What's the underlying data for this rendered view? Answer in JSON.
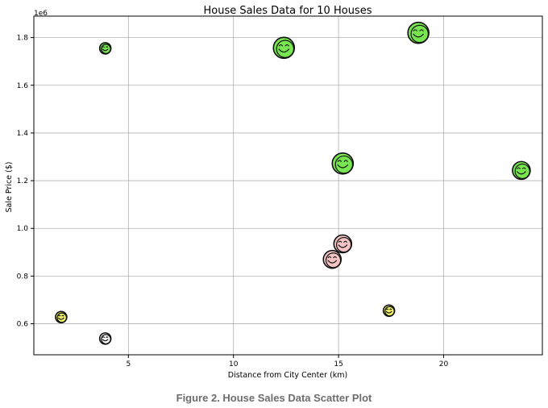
{
  "chart_data": {
    "type": "scatter",
    "title": "House Sales Data for 10 Houses",
    "xlabel": "Distance from City Center (km)",
    "ylabel": "Sale Price ($)",
    "y_multiplier": "1e6",
    "xlim": [
      0.5,
      24.7
    ],
    "ylim": [
      470000,
      1890000
    ],
    "x_ticks": [
      {
        "value": 5,
        "label": "5"
      },
      {
        "value": 10,
        "label": "10"
      },
      {
        "value": 15,
        "label": "15"
      },
      {
        "value": 20,
        "label": "20"
      }
    ],
    "y_ticks": [
      {
        "value": 600000,
        "label": "0.6"
      },
      {
        "value": 800000,
        "label": "0.8"
      },
      {
        "value": 1000000,
        "label": "1.0"
      },
      {
        "value": 1200000,
        "label": "1.2"
      },
      {
        "value": 1400000,
        "label": "1.4"
      },
      {
        "value": 1600000,
        "label": "1.6"
      },
      {
        "value": 1800000,
        "label": "1.8"
      }
    ],
    "grid": true,
    "marker": "smiley-emoji",
    "points": [
      {
        "x": 1.8,
        "y": 628000,
        "color": "#f4f46c",
        "size": "small"
      },
      {
        "x": 3.9,
        "y": 538000,
        "color": "#ffffff",
        "size": "small"
      },
      {
        "x": 3.9,
        "y": 1755000,
        "color": "#78e650",
        "size": "small"
      },
      {
        "x": 12.4,
        "y": 1757000,
        "color": "#78e650",
        "size": "large"
      },
      {
        "x": 14.7,
        "y": 870000,
        "color": "#f3c3c3",
        "size": "medium"
      },
      {
        "x": 15.2,
        "y": 935000,
        "color": "#f3c3c3",
        "size": "medium"
      },
      {
        "x": 15.2,
        "y": 1272000,
        "color": "#78e650",
        "size": "large"
      },
      {
        "x": 17.4,
        "y": 655000,
        "color": "#f4f46c",
        "size": "small"
      },
      {
        "x": 18.8,
        "y": 1820000,
        "color": "#78e650",
        "size": "large"
      },
      {
        "x": 23.7,
        "y": 1243000,
        "color": "#78e650",
        "size": "medium"
      }
    ]
  },
  "caption": "Figure 2. House Sales Data Scatter Plot"
}
